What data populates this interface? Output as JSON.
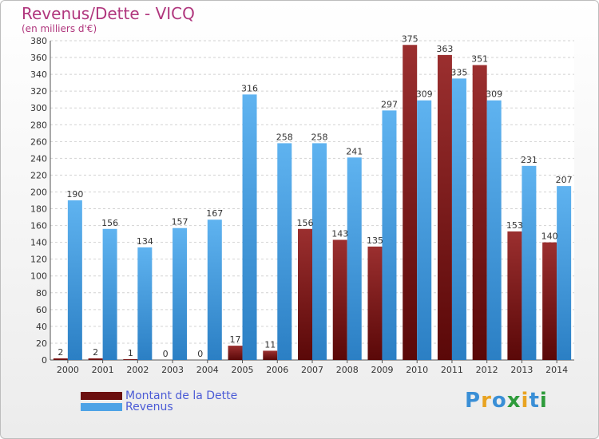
{
  "header": {
    "title": "Revenus/Dette - VICQ",
    "subtitle": "(en milliers d'€)"
  },
  "chart_data": {
    "type": "bar",
    "categories": [
      "2000",
      "2001",
      "2002",
      "2003",
      "2004",
      "2005",
      "2006",
      "2007",
      "2008",
      "2009",
      "2010",
      "2011",
      "2012",
      "2013",
      "2014"
    ],
    "series": [
      {
        "name": "Montant de la Dette",
        "color": "#7a1d1d",
        "values": [
          2,
          2,
          1,
          0,
          0,
          17,
          11,
          156,
          143,
          135,
          375,
          363,
          351,
          153,
          140
        ]
      },
      {
        "name": "Revenus",
        "color": "#4da3e6",
        "values": [
          190,
          156,
          134,
          157,
          167,
          316,
          258,
          258,
          241,
          297,
          309,
          335,
          309,
          231,
          207
        ]
      }
    ],
    "yticks": [
      0,
      20,
      40,
      60,
      80,
      100,
      120,
      140,
      160,
      180,
      200,
      220,
      240,
      260,
      280,
      300,
      320,
      340,
      360,
      380
    ],
    "ylim": [
      0,
      380
    ],
    "grid": true,
    "legend": "bottom-left"
  },
  "legend": {
    "debt_label": "Montant de la Dette",
    "revenue_label": "Revenus",
    "debt_color": "#6b0f0f",
    "revenue_color": "#4da3e6"
  },
  "brand": {
    "letters": [
      "P",
      "r",
      "o",
      "x",
      "i",
      "t",
      "i"
    ],
    "colors": [
      "#3a8fd6",
      "#e8a321",
      "#3a8fd6",
      "#2e9b3b",
      "#e8a321",
      "#3a8fd6",
      "#2e9b3b"
    ]
  }
}
